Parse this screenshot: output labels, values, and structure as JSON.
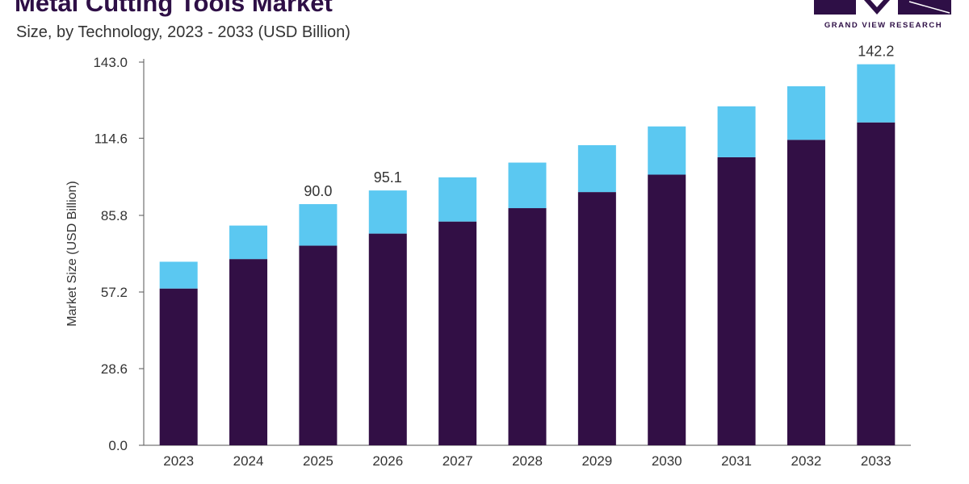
{
  "header": {
    "title": "Metal Cutting Tools Market",
    "subtitle": "Size, by Technology, 2023 - 2033 (USD Billion)",
    "brand": "GRAND VIEW RESEARCH"
  },
  "colors": {
    "series_primary": "#320f45",
    "series_secondary": "#5bc8f1",
    "axis": "#555555",
    "brand": "#2e0f46"
  },
  "chart_data": {
    "type": "bar",
    "stacked": true,
    "title": "Metal Cutting Tools Market",
    "subtitle": "Size, by Technology, 2023 - 2033 (USD Billion)",
    "xlabel": "",
    "ylabel": "Market Size (USD Billion)",
    "ylim": [
      0,
      143
    ],
    "yticks": [
      "0.0",
      "28.6",
      "57.2",
      "85.8",
      "114.6",
      "143.0"
    ],
    "ytick_values": [
      0,
      28.6,
      57.2,
      85.8,
      114.6,
      143.0
    ],
    "categories": [
      "2023",
      "2024",
      "2025",
      "2026",
      "2027",
      "2028",
      "2029",
      "2030",
      "2031",
      "2032",
      "2033"
    ],
    "series": [
      {
        "values": [
          58.5,
          69.5,
          74.5,
          79.0,
          83.5,
          88.5,
          94.5,
          101.0,
          107.5,
          114.0,
          120.5
        ]
      },
      {
        "values": [
          10.0,
          12.5,
          15.5,
          16.1,
          16.5,
          17.0,
          17.5,
          18.0,
          19.0,
          20.0,
          21.7
        ]
      }
    ],
    "data_labels": [
      "",
      "",
      "90.0",
      "95.1",
      "",
      "",
      "",
      "",
      "",
      "",
      "142.2"
    ],
    "grid": false
  }
}
